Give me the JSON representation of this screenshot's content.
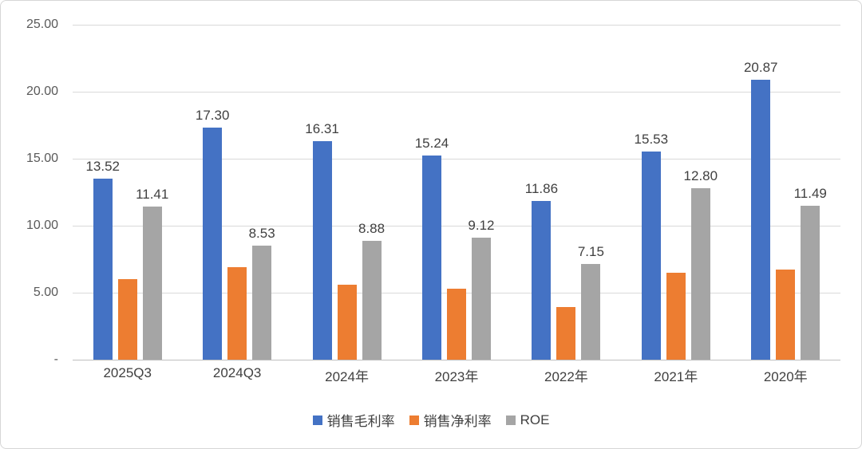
{
  "chart_data": {
    "type": "bar",
    "categories": [
      "2025Q3",
      "2024Q3",
      "2024年",
      "2023年",
      "2022年",
      "2021年",
      "2020年"
    ],
    "series": [
      {
        "name": "销售毛利率",
        "key": "gross-margin",
        "color": "#4472C4",
        "show_labels": true,
        "values": [
          13.52,
          17.3,
          16.31,
          15.24,
          11.86,
          15.53,
          20.87
        ]
      },
      {
        "name": "销售净利率",
        "key": "net-margin",
        "color": "#ED7D31",
        "show_labels": false,
        "values": [
          6.0,
          6.9,
          5.6,
          5.3,
          3.9,
          6.5,
          6.7
        ]
      },
      {
        "name": "ROE",
        "key": "roe",
        "color": "#A5A5A5",
        "show_labels": true,
        "values": [
          11.41,
          8.53,
          8.88,
          9.12,
          7.15,
          12.8,
          11.49
        ]
      }
    ],
    "y_axis": {
      "ticks": [
        "25.00",
        "20.00",
        "15.00",
        "10.00",
        "5.00",
        "-"
      ],
      "min": 0,
      "max": 25
    },
    "grid": true,
    "legend_position": "bottom",
    "title": ""
  }
}
